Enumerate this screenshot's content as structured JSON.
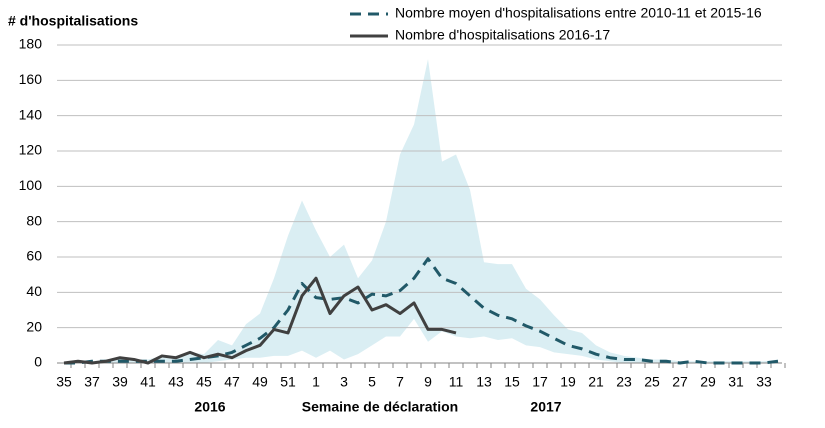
{
  "chart_data": {
    "type": "line",
    "ylabel": "# d'hospitalisations",
    "categories": [
      "35",
      null,
      "37",
      null,
      "39",
      null,
      "41",
      null,
      "43",
      null,
      "45",
      null,
      "47",
      null,
      "49",
      null,
      "51",
      null,
      "1",
      null,
      "3",
      null,
      "5",
      null,
      "7",
      null,
      "9",
      null,
      "11",
      null,
      "13",
      null,
      "15",
      null,
      "17",
      null,
      "19",
      null,
      "21",
      null,
      "23",
      null,
      "25",
      null,
      "27",
      null,
      "29",
      null,
      "31",
      null,
      "33",
      null
    ],
    "series": [
      {
        "name": "Nombre moyen d'hospitalisations entre 2010-11 et 2015-16",
        "color": "#215968",
        "dashed": true,
        "values": [
          0,
          0,
          1,
          1,
          1,
          1,
          1,
          1,
          1,
          2,
          3,
          4,
          6,
          10,
          14,
          20,
          30,
          45,
          37,
          36,
          37,
          34,
          39,
          38,
          41,
          48,
          59,
          48,
          45,
          38,
          31,
          27,
          25,
          21,
          18,
          14,
          10,
          8,
          5,
          3,
          2,
          2,
          1,
          1,
          0,
          1,
          0,
          0,
          0,
          0,
          0,
          1
        ]
      },
      {
        "name": "Nombre d'hospitalisations 2016-17",
        "color": "#404040",
        "dashed": false,
        "values": [
          0,
          1,
          0,
          1,
          3,
          2,
          0,
          4,
          3,
          6,
          3,
          5,
          3,
          7,
          10,
          19,
          17,
          38,
          48,
          28,
          38,
          43,
          30,
          33,
          28,
          34,
          19,
          19,
          17,
          null,
          null,
          null,
          null,
          null,
          null,
          null,
          null,
          null,
          null,
          null,
          null,
          null,
          null,
          null,
          null,
          null,
          null,
          null,
          null,
          null,
          null,
          null
        ]
      }
    ],
    "band": {
      "color": "#daeef3",
      "upper": [
        0,
        1,
        1,
        2,
        3,
        2,
        2,
        4,
        4,
        6,
        5,
        13,
        10,
        22,
        28,
        48,
        72,
        92,
        75,
        60,
        67,
        48,
        58,
        80,
        118,
        135,
        172,
        114,
        118,
        98,
        57,
        56,
        56,
        42,
        36,
        27,
        19,
        17,
        10,
        6,
        4,
        3,
        2,
        2,
        1,
        1,
        1,
        1,
        1,
        1,
        1,
        2
      ],
      "lower": [
        0,
        0,
        0,
        0,
        0,
        0,
        0,
        0,
        0,
        0,
        0,
        1,
        2,
        3,
        3,
        4,
        4,
        7,
        3,
        7,
        2,
        5,
        10,
        15,
        15,
        25,
        12,
        18,
        15,
        14,
        15,
        13,
        14,
        10,
        9,
        6,
        5,
        4,
        2,
        1,
        0,
        0,
        0,
        0,
        0,
        0,
        0,
        0,
        0,
        0,
        0,
        0
      ]
    },
    "annotations": [
      "2016",
      "Semaine de déclaration",
      "2017"
    ],
    "ylim": [
      0,
      180
    ],
    "yticks": [
      0,
      20,
      40,
      60,
      80,
      100,
      120,
      140,
      160,
      180
    ],
    "grid": true
  }
}
